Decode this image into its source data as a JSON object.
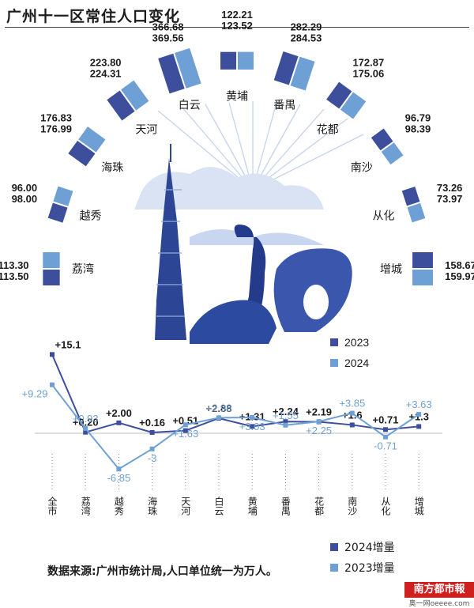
{
  "title": "广州十一区常住人口变化",
  "source_note": "数据来源:广州市统计局,人口单位统一为万人。",
  "brand": {
    "name": "南方都市報",
    "sub": "奥一网oeeee.com"
  },
  "colors": {
    "y2023": "#3d4f9c",
    "y2024": "#6ea0d6",
    "illustration": "#243a8a"
  },
  "chart_data": [
    {
      "type": "bar",
      "title": "广州十一区常住人口变化",
      "legend": [
        "2023",
        "2024"
      ],
      "legend_position": "bottom-right",
      "categories": [
        "荔湾",
        "越秀",
        "海珠",
        "天河",
        "白云",
        "黄埔",
        "番禺",
        "花都",
        "南沙",
        "从化",
        "增城"
      ],
      "series": [
        {
          "name": "2023",
          "values": [
            113.3,
            96.0,
            176.83,
            223.8,
            366.68,
            122.21,
            282.29,
            172.87,
            96.79,
            73.26,
            158.67
          ]
        },
        {
          "name": "2024",
          "values": [
            113.5,
            98.0,
            176.99,
            224.31,
            369.56,
            123.52,
            284.53,
            175.06,
            98.39,
            73.97,
            159.97
          ]
        }
      ],
      "labels": {
        "2023": [
          "113.30",
          "96.00",
          "176.83",
          "223.80",
          "366.68",
          "122.21",
          "282.29",
          "172.87",
          "96.79",
          "73.26",
          "158.67"
        ],
        "2024": [
          "113.50",
          "98.00",
          "176.99",
          "224.31",
          "369.56",
          "123.52",
          "284.53",
          "175.06",
          "98.39",
          "73.97",
          "159.97"
        ]
      }
    },
    {
      "type": "line",
      "categories": [
        "全市",
        "荔湾",
        "越秀",
        "海珠",
        "天河",
        "白云",
        "黄埔",
        "番禺",
        "花都",
        "南沙",
        "从化",
        "增城"
      ],
      "legend": [
        "2024增量",
        "2023增量"
      ],
      "legend_position": "bottom-right",
      "ylim": [
        -7,
        16
      ],
      "series": [
        {
          "name": "2024增量",
          "values": [
            15.1,
            0.2,
            2.0,
            0.16,
            0.51,
            2.88,
            1.31,
            2.24,
            2.19,
            1.6,
            0.71,
            1.3
          ],
          "labels": [
            "+15.1",
            "+0.20",
            "+2.00",
            "+0.16",
            "+0.51",
            "+2.88",
            "+1.31",
            "+2.24",
            "+2.19",
            "+1.6",
            "+0.71",
            "+1.3"
          ]
        },
        {
          "name": "2023增量",
          "values": [
            9.29,
            0.93,
            -6.85,
            -3,
            1.63,
            2.98,
            3.03,
            1.55,
            2.25,
            3.85,
            -0.71,
            3.63
          ],
          "labels": [
            "+9.29",
            "+0.93",
            "-6.85",
            "-3",
            "+1.63",
            "+2.98",
            "+3.03",
            "+1.55",
            "+2.25",
            "+3.85",
            "-0.71",
            "+3.63"
          ]
        }
      ]
    }
  ]
}
